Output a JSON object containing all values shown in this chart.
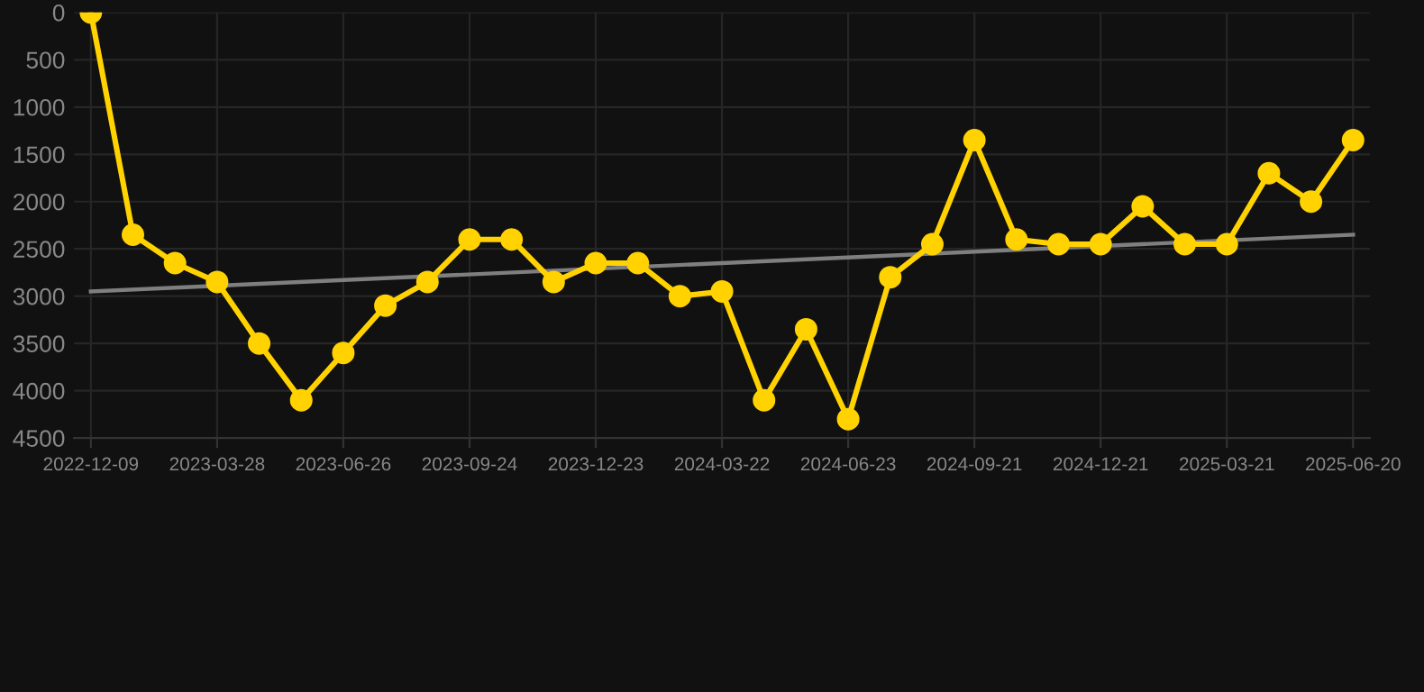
{
  "chart_data": {
    "type": "line",
    "categories": [
      "2022-12-09",
      null,
      null,
      "2023-03-28",
      null,
      null,
      "2023-06-26",
      null,
      null,
      "2023-09-24",
      null,
      null,
      "2023-12-23",
      null,
      null,
      "2024-03-22",
      null,
      null,
      "2024-06-23",
      null,
      null,
      "2024-09-21",
      null,
      null,
      "2024-12-21",
      null,
      null,
      "2025-03-21",
      null,
      null,
      "2025-06-20"
    ],
    "series": [
      {
        "color": "#ffd200",
        "values": [
          0,
          2350,
          2650,
          2850,
          3500,
          4100,
          3600,
          3100,
          2850,
          2400,
          2400,
          2850,
          2650,
          2650,
          3000,
          2950,
          4100,
          3350,
          4300,
          2800,
          2450,
          1350,
          2400,
          2450,
          2450,
          2050,
          2450,
          2450,
          1700,
          2000,
          1350
        ]
      },
      {
        "type": "line",
        "color": "#7f7f7f",
        "marker": "none",
        "values": [
          2950,
          null,
          null,
          null,
          null,
          null,
          null,
          null,
          null,
          null,
          null,
          null,
          null,
          null,
          null,
          null,
          null,
          null,
          null,
          null,
          null,
          null,
          null,
          null,
          null,
          null,
          null,
          null,
          null,
          null,
          2350
        ]
      }
    ],
    "ylim": [
      4500,
      0
    ],
    "yticks": [
      0,
      500,
      1000,
      1500,
      2000,
      2500,
      3000,
      3500,
      4000,
      4500
    ],
    "grid": true,
    "marker": "circle",
    "line_style": "solid"
  }
}
